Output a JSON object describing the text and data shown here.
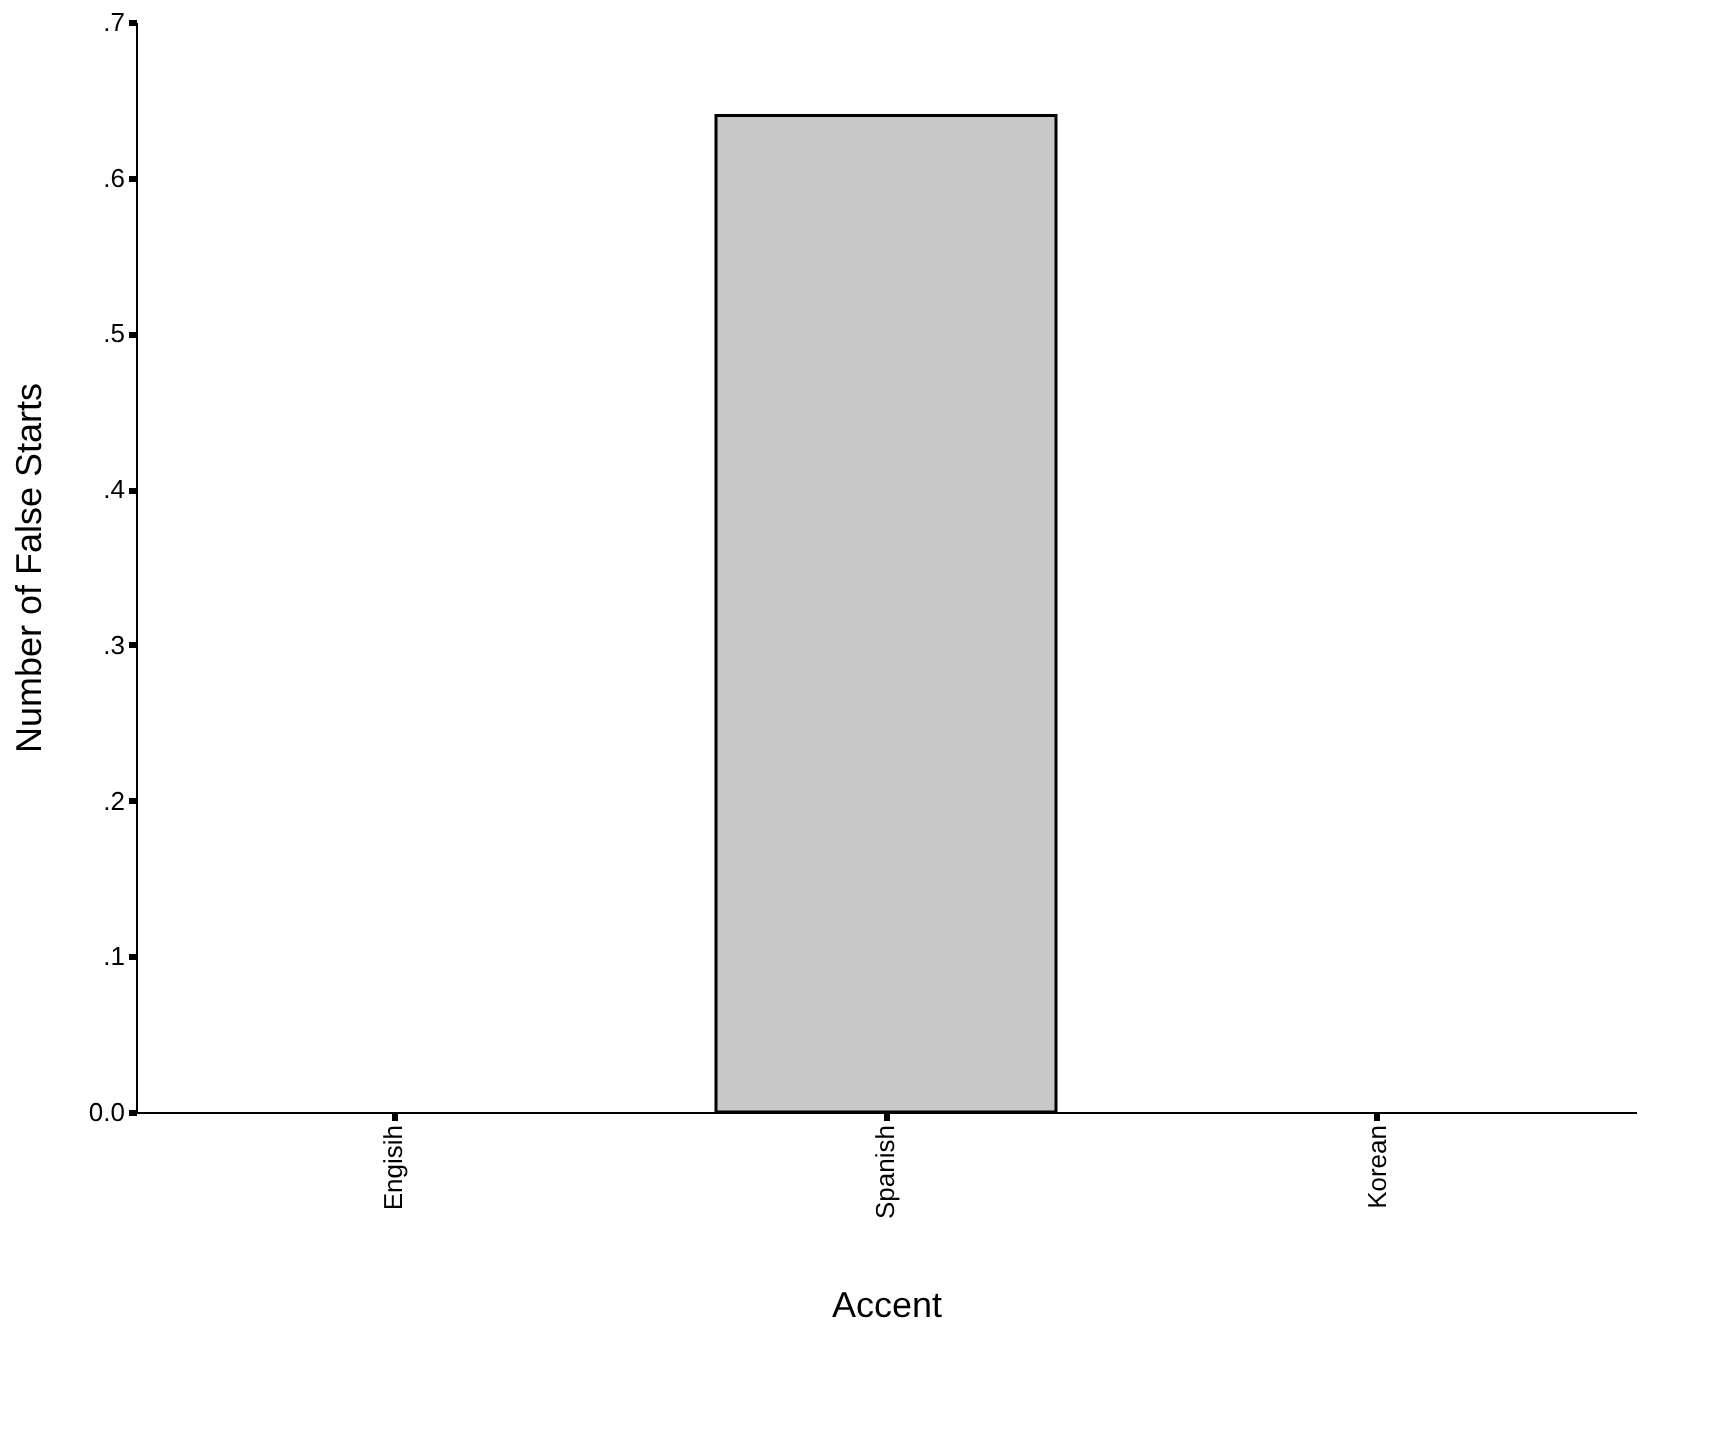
{
  "chart_data": {
    "type": "bar",
    "xlabel": "Accent",
    "ylabel": "Number of False Starts",
    "categories": [
      "Engisih",
      "Spanish",
      "Korean"
    ],
    "values": [
      0,
      0.64,
      0
    ],
    "color": "#c8c8c8",
    "ylim": [
      0,
      0.7
    ],
    "yticks": [
      {
        "value": 0,
        "label": "0.0"
      },
      {
        "value": 0.1,
        "label": ".1"
      },
      {
        "value": 0.2,
        "label": ".2"
      },
      {
        "value": 0.3,
        "label": ".3"
      },
      {
        "value": 0.4,
        "label": ".4"
      },
      {
        "value": 0.5,
        "label": ".5"
      },
      {
        "value": 0.6,
        "label": ".6"
      },
      {
        "value": 0.7,
        "label": ".7"
      }
    ],
    "grid": false
  }
}
